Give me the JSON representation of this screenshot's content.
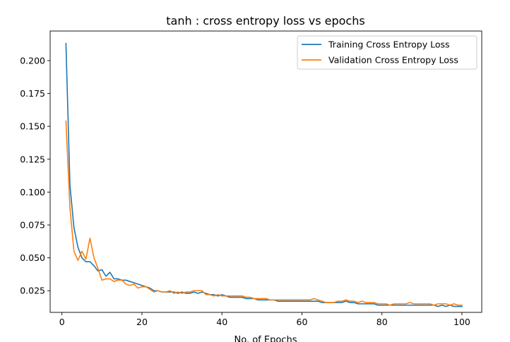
{
  "chart_data": {
    "type": "line",
    "title": "tanh : cross entropy loss vs epochs",
    "xlabel": "No. of Epochs",
    "ylabel": "",
    "xlim": [
      -2.95,
      104.95
    ],
    "ylim": [
      0.0085,
      0.2225
    ],
    "xticks": [
      0,
      20,
      40,
      60,
      80,
      100
    ],
    "yticks": [
      0.025,
      0.05,
      0.075,
      0.1,
      0.125,
      0.15,
      0.175,
      0.2
    ],
    "ytick_labels": [
      "0.025",
      "0.050",
      "0.075",
      "0.100",
      "0.125",
      "0.150",
      "0.175",
      "0.200"
    ],
    "grid": false,
    "legend_position": "top-right",
    "x": [
      1,
      2,
      3,
      4,
      5,
      6,
      7,
      8,
      9,
      10,
      11,
      12,
      13,
      14,
      15,
      16,
      17,
      18,
      19,
      20,
      21,
      22,
      23,
      24,
      25,
      26,
      27,
      28,
      29,
      30,
      31,
      32,
      33,
      34,
      35,
      36,
      37,
      38,
      39,
      40,
      41,
      42,
      43,
      44,
      45,
      46,
      47,
      48,
      49,
      50,
      51,
      52,
      53,
      54,
      55,
      56,
      57,
      58,
      59,
      60,
      61,
      62,
      63,
      64,
      65,
      66,
      67,
      68,
      69,
      70,
      71,
      72,
      73,
      74,
      75,
      76,
      77,
      78,
      79,
      80,
      81,
      82,
      83,
      84,
      85,
      86,
      87,
      88,
      89,
      90,
      91,
      92,
      93,
      94,
      95,
      96,
      97,
      98,
      99,
      100
    ],
    "series": [
      {
        "name": "Training Cross Entropy Loss",
        "color": "#1f77b4",
        "values": [
          0.213,
          0.105,
          0.073,
          0.058,
          0.05,
          0.047,
          0.047,
          0.044,
          0.04,
          0.041,
          0.036,
          0.039,
          0.034,
          0.034,
          0.033,
          0.033,
          0.032,
          0.031,
          0.03,
          0.029,
          0.028,
          0.027,
          0.025,
          0.025,
          0.024,
          0.024,
          0.024,
          0.024,
          0.023,
          0.024,
          0.023,
          0.023,
          0.024,
          0.023,
          0.024,
          0.023,
          0.022,
          0.022,
          0.021,
          0.022,
          0.021,
          0.02,
          0.02,
          0.02,
          0.02,
          0.019,
          0.019,
          0.019,
          0.018,
          0.018,
          0.018,
          0.018,
          0.018,
          0.017,
          0.017,
          0.017,
          0.017,
          0.017,
          0.017,
          0.017,
          0.017,
          0.017,
          0.017,
          0.017,
          0.016,
          0.016,
          0.016,
          0.016,
          0.016,
          0.016,
          0.017,
          0.016,
          0.016,
          0.015,
          0.015,
          0.015,
          0.015,
          0.015,
          0.014,
          0.014,
          0.014,
          0.014,
          0.014,
          0.014,
          0.014,
          0.014,
          0.014,
          0.014,
          0.014,
          0.014,
          0.014,
          0.014,
          0.014,
          0.013,
          0.014,
          0.013,
          0.014,
          0.013,
          0.013,
          0.013
        ]
      },
      {
        "name": "Validation Cross Entropy Loss",
        "color": "#ff7f0e",
        "values": [
          0.154,
          0.088,
          0.055,
          0.048,
          0.055,
          0.049,
          0.065,
          0.05,
          0.042,
          0.033,
          0.034,
          0.034,
          0.032,
          0.033,
          0.033,
          0.03,
          0.029,
          0.03,
          0.027,
          0.028,
          0.028,
          0.026,
          0.024,
          0.025,
          0.024,
          0.024,
          0.025,
          0.023,
          0.024,
          0.023,
          0.024,
          0.024,
          0.025,
          0.025,
          0.025,
          0.022,
          0.022,
          0.021,
          0.022,
          0.021,
          0.021,
          0.021,
          0.021,
          0.021,
          0.021,
          0.02,
          0.02,
          0.019,
          0.019,
          0.019,
          0.019,
          0.018,
          0.018,
          0.018,
          0.018,
          0.018,
          0.018,
          0.018,
          0.018,
          0.018,
          0.018,
          0.018,
          0.019,
          0.018,
          0.017,
          0.016,
          0.016,
          0.016,
          0.017,
          0.017,
          0.018,
          0.017,
          0.017,
          0.016,
          0.017,
          0.016,
          0.016,
          0.016,
          0.015,
          0.015,
          0.015,
          0.014,
          0.015,
          0.015,
          0.015,
          0.015,
          0.016,
          0.015,
          0.015,
          0.015,
          0.015,
          0.015,
          0.014,
          0.015,
          0.015,
          0.015,
          0.014,
          0.015,
          0.014,
          0.014
        ]
      }
    ]
  }
}
